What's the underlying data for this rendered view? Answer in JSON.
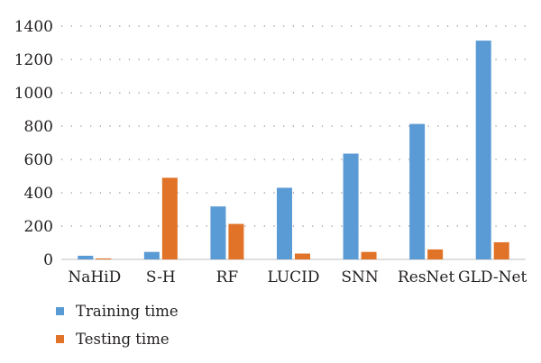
{
  "chart_data": {
    "type": "bar",
    "categories": [
      "NaHiD",
      "S-H",
      "RF",
      "LUCID",
      "SNN",
      "ResNet",
      "GLD-Net"
    ],
    "series": [
      {
        "name": "Training time",
        "values": [
          22,
          45,
          318,
          430,
          635,
          813,
          1313
        ],
        "color": "#5b9bd5"
      },
      {
        "name": "Testing time",
        "values": [
          6,
          490,
          213,
          35,
          45,
          60,
          103
        ],
        "color": "#e07328"
      }
    ],
    "y_ticks": [
      0,
      200,
      400,
      600,
      800,
      1000,
      1200,
      1400
    ],
    "ylim": [
      0,
      1400
    ],
    "grid": "horizontal-dotted",
    "legend_position": "bottom-left",
    "title": "",
    "xlabel": "",
    "ylabel": ""
  }
}
